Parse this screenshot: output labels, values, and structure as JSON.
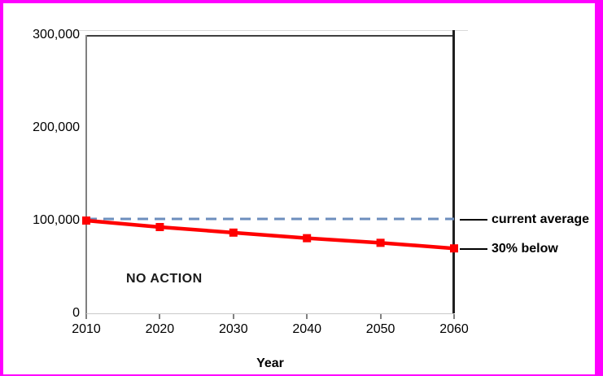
{
  "page": {
    "background_color": "#FFFFFF",
    "frame_color": "#FF00FF"
  },
  "chart_data": {
    "type": "line",
    "x": [
      2010,
      2020,
      2030,
      2040,
      2050,
      2060
    ],
    "x_tick_labels": [
      "2010",
      "2020",
      "2030",
      "2040",
      "2050",
      "2060"
    ],
    "xlabel": "Year",
    "ylabel": "",
    "xlim": [
      2010,
      2060
    ],
    "ylim": [
      0,
      300000
    ],
    "yticks": [
      0,
      100000,
      200000,
      300000
    ],
    "ytick_labels": [
      "0",
      "100,000",
      "200,000",
      "300,000"
    ],
    "grid": false,
    "series": [
      {
        "name": "current average",
        "color": "#6C8EBD",
        "line_style": "dashed",
        "marker": "none",
        "values": [
          100000,
          100000,
          100000,
          100000,
          100000,
          100000
        ]
      },
      {
        "name": "30% below",
        "color": "#FF0000",
        "line_style": "solid",
        "marker": "square",
        "values": [
          100000,
          93000,
          87000,
          81000,
          76000,
          70000
        ]
      }
    ],
    "annotations": [
      {
        "text": "NO ACTION"
      }
    ],
    "series_end_labels": [
      {
        "text": "current average",
        "value": 100000
      },
      {
        "text": "30% below",
        "value": 70000
      }
    ]
  }
}
